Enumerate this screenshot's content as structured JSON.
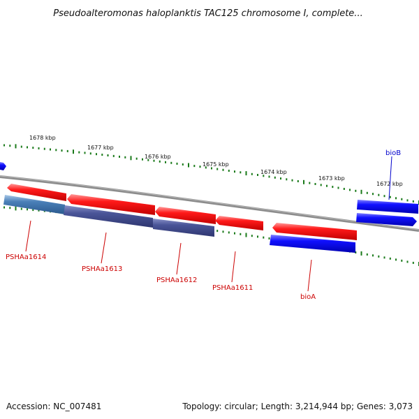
{
  "title": "Pseudoalteromonas haloplanktis TAC125 chromosome I, complete...",
  "footer": {
    "accession": "Accession: NC_007481",
    "summary": "Topology: circular; Length: 3,214,944 bp; Genes: 3,073"
  },
  "colors": {
    "forward_strand": "#ff0000",
    "reverse_strand": "#0000ff",
    "ticks": "#1a7a1a",
    "backbone": "#808080",
    "label_red": "#cc0000",
    "label_blue": "#0000cc",
    "cds_slate": "#4a5598",
    "cds_steel": "#4a7fb8"
  },
  "axis": {
    "unit": "kbp",
    "ticks": [
      {
        "kbp": 1678,
        "label": "1678 kbp"
      },
      {
        "kbp": 1677,
        "label": "1677 kbp"
      },
      {
        "kbp": 1676,
        "label": "1676 kbp"
      },
      {
        "kbp": 1675,
        "label": "1675 kbp"
      },
      {
        "kbp": 1674,
        "label": "1674 kbp"
      },
      {
        "kbp": 1673,
        "label": "1673 kbp"
      },
      {
        "kbp": 1672,
        "label": "1672 kbp"
      }
    ]
  },
  "features": [
    {
      "label": "bioB",
      "label_color": "blue"
    },
    {
      "label": "PSHAa1614",
      "label_color": "red"
    },
    {
      "label": "PSHAa1613",
      "label_color": "red"
    },
    {
      "label": "PSHAa1612",
      "label_color": "red"
    },
    {
      "label": "PSHAa1611",
      "label_color": "red"
    },
    {
      "label": "bioA",
      "label_color": "red"
    }
  ]
}
